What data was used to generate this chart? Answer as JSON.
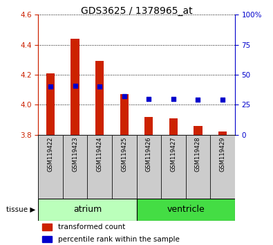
{
  "title": "GDS3625 / 1378965_at",
  "samples": [
    "GSM119422",
    "GSM119423",
    "GSM119424",
    "GSM119425",
    "GSM119426",
    "GSM119427",
    "GSM119428",
    "GSM119429"
  ],
  "transformed_count": [
    4.21,
    4.44,
    4.29,
    4.07,
    3.92,
    3.91,
    3.86,
    3.82
  ],
  "percentile_rank": [
    40,
    41,
    40,
    32,
    30,
    30,
    29,
    29
  ],
  "bar_bottom": 3.8,
  "ylim_left": [
    3.8,
    4.6
  ],
  "ylim_right": [
    0,
    100
  ],
  "yticks_left": [
    3.8,
    4.0,
    4.2,
    4.4,
    4.6
  ],
  "yticks_right": [
    0,
    25,
    50,
    75,
    100
  ],
  "ytick_labels_right": [
    "0",
    "25",
    "50",
    "75",
    "100%"
  ],
  "bar_color": "#cc2200",
  "dot_color": "#0000cc",
  "tissue_groups": [
    {
      "label": "atrium",
      "samples": [
        0,
        1,
        2,
        3
      ],
      "color": "#bbffbb"
    },
    {
      "label": "ventricle",
      "samples": [
        4,
        5,
        6,
        7
      ],
      "color": "#44dd44"
    }
  ],
  "left_axis_color": "#cc2200",
  "right_axis_color": "#0000cc",
  "sample_bg_color": "#cccccc",
  "bar_width": 0.35,
  "figsize": [
    3.95,
    3.54
  ],
  "dpi": 100
}
